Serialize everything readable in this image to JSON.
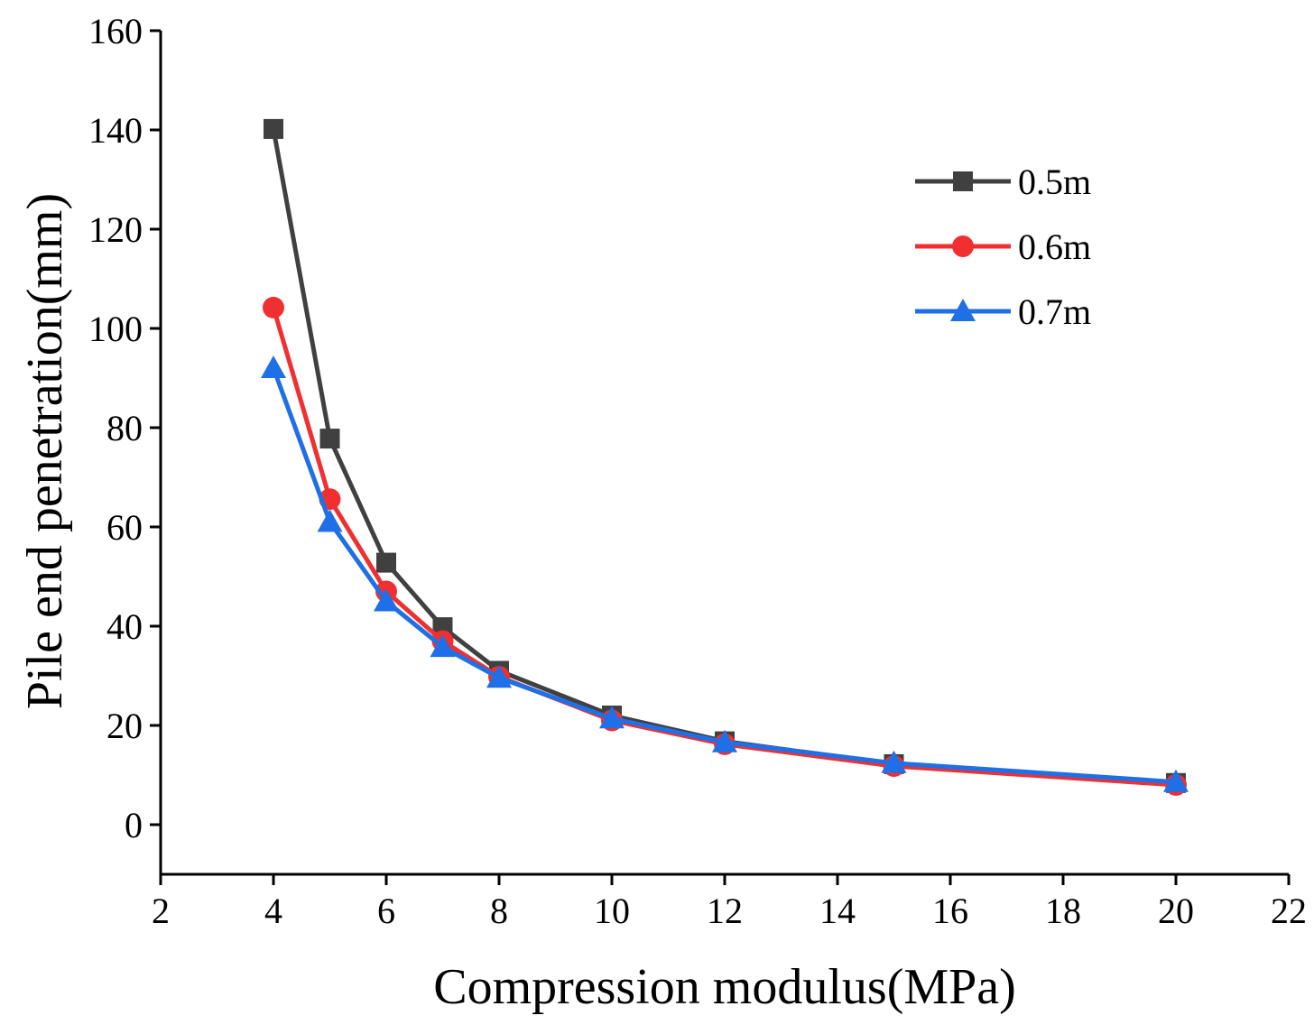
{
  "chart_data": {
    "type": "line",
    "title": "",
    "xlabel": "Compression modulus(MPa)",
    "ylabel": "Pile end penetration(mm)",
    "xlim": [
      2,
      22
    ],
    "ylim": [
      -10,
      160
    ],
    "xticks": [
      2,
      4,
      6,
      8,
      10,
      12,
      14,
      16,
      18,
      20,
      22
    ],
    "yticks": [
      0,
      20,
      40,
      60,
      80,
      100,
      120,
      140,
      160
    ],
    "grid": false,
    "legend_position": "top-right",
    "x": [
      4,
      5,
      6,
      7,
      8,
      10,
      12,
      15,
      20
    ],
    "series": [
      {
        "name": "0.5m",
        "color": "#404040",
        "marker": "square",
        "values": [
          140.2,
          77.8,
          52.8,
          39.8,
          31.0,
          22.0,
          16.8,
          12.2,
          8.4
        ]
      },
      {
        "name": "0.6m",
        "color": "#f03030",
        "marker": "circle",
        "values": [
          104.2,
          65.6,
          47.0,
          37.0,
          29.8,
          21.0,
          16.2,
          11.8,
          8.0
        ]
      },
      {
        "name": "0.7m",
        "color": "#1f6fe6",
        "marker": "triangle",
        "values": [
          92.0,
          61.0,
          45.0,
          35.8,
          29.6,
          21.4,
          16.6,
          12.4,
          8.6
        ]
      }
    ]
  }
}
